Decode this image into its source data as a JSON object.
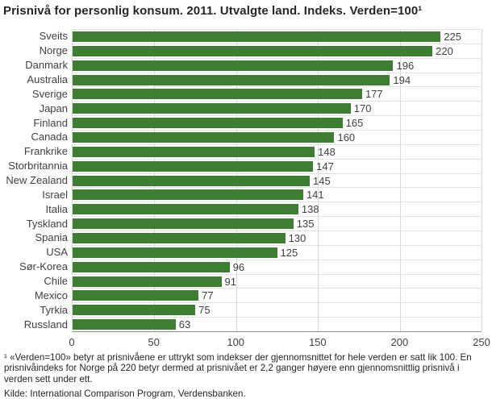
{
  "title": "Prisnivå for personlig konsum. 2011. Utvalgte land. Indeks. Verden=100¹",
  "chart_data": {
    "type": "bar",
    "orientation": "horizontal",
    "categories": [
      "Sveits",
      "Norge",
      "Danmark",
      "Australia",
      "Sverige",
      "Japan",
      "Finland",
      "Canada",
      "Frankrike",
      "Storbritannia",
      "New Zealand",
      "Israel",
      "Italia",
      "Tyskland",
      "Spania",
      "USA",
      "Sør-Korea",
      "Chile",
      "Mexico",
      "Tyrkia",
      "Russland"
    ],
    "values": [
      225,
      220,
      196,
      194,
      177,
      170,
      165,
      160,
      148,
      147,
      145,
      141,
      138,
      135,
      130,
      125,
      96,
      91,
      77,
      75,
      63
    ],
    "xlim": [
      0,
      250
    ],
    "xticks": [
      0,
      50,
      100,
      150,
      200,
      250
    ],
    "bar_color": "#3e7e33",
    "grid": true,
    "value_labels": true,
    "legend": "none"
  },
  "footnote": "¹ «Verden=100» betyr at prisnivåene er uttrykt som indekser der gjennomsnittet for hele verden er satt lik 100. En prisnivåindeks for Norge på 220 betyr dermed at prisnivået er 2,2 ganger høyere enn gjennomsnittlig prisnivå i verden sett under ett.",
  "source": "Kilde: International Comparison Program, Verdensbanken."
}
